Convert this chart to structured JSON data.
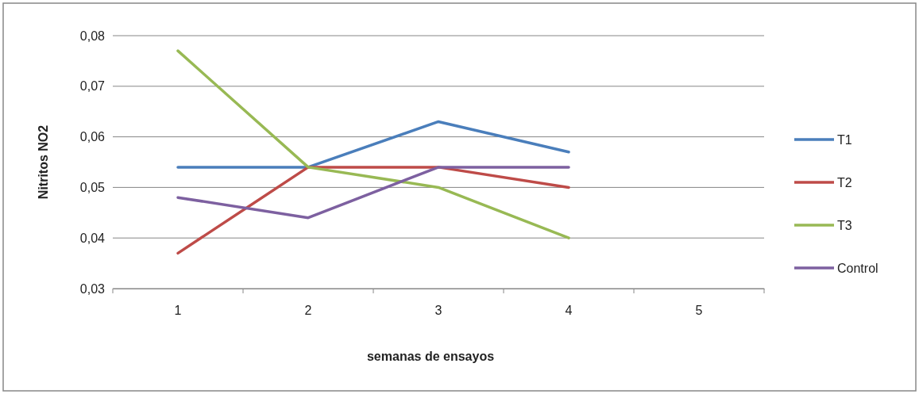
{
  "chart_data": {
    "type": "line",
    "xlabel": "semanas de ensayos",
    "ylabel": "Nitritos NO2",
    "categories": [
      "1",
      "2",
      "3",
      "4",
      "5"
    ],
    "ylim": [
      0.03,
      0.08
    ],
    "yticks": [
      {
        "value": 0.03,
        "label": "0,03"
      },
      {
        "value": 0.04,
        "label": "0,04"
      },
      {
        "value": 0.05,
        "label": "0,05"
      },
      {
        "value": 0.06,
        "label": "0,06"
      },
      {
        "value": 0.07,
        "label": "0,07"
      },
      {
        "value": 0.08,
        "label": "0,08"
      }
    ],
    "grid": "y",
    "legend": "right",
    "marker": "none",
    "line_style": "solid",
    "series": [
      {
        "name": "T1",
        "color": "#4a7ebb",
        "values": [
          0.054,
          0.054,
          0.063,
          0.057,
          null
        ]
      },
      {
        "name": "T2",
        "color": "#be4b48",
        "values": [
          0.037,
          0.054,
          0.054,
          0.05,
          null
        ]
      },
      {
        "name": "T3",
        "color": "#98b954",
        "values": [
          0.077,
          0.054,
          0.05,
          0.04,
          null
        ]
      },
      {
        "name": "Control",
        "color": "#7d60a0",
        "values": [
          0.048,
          0.044,
          0.054,
          0.054,
          null
        ]
      }
    ]
  }
}
